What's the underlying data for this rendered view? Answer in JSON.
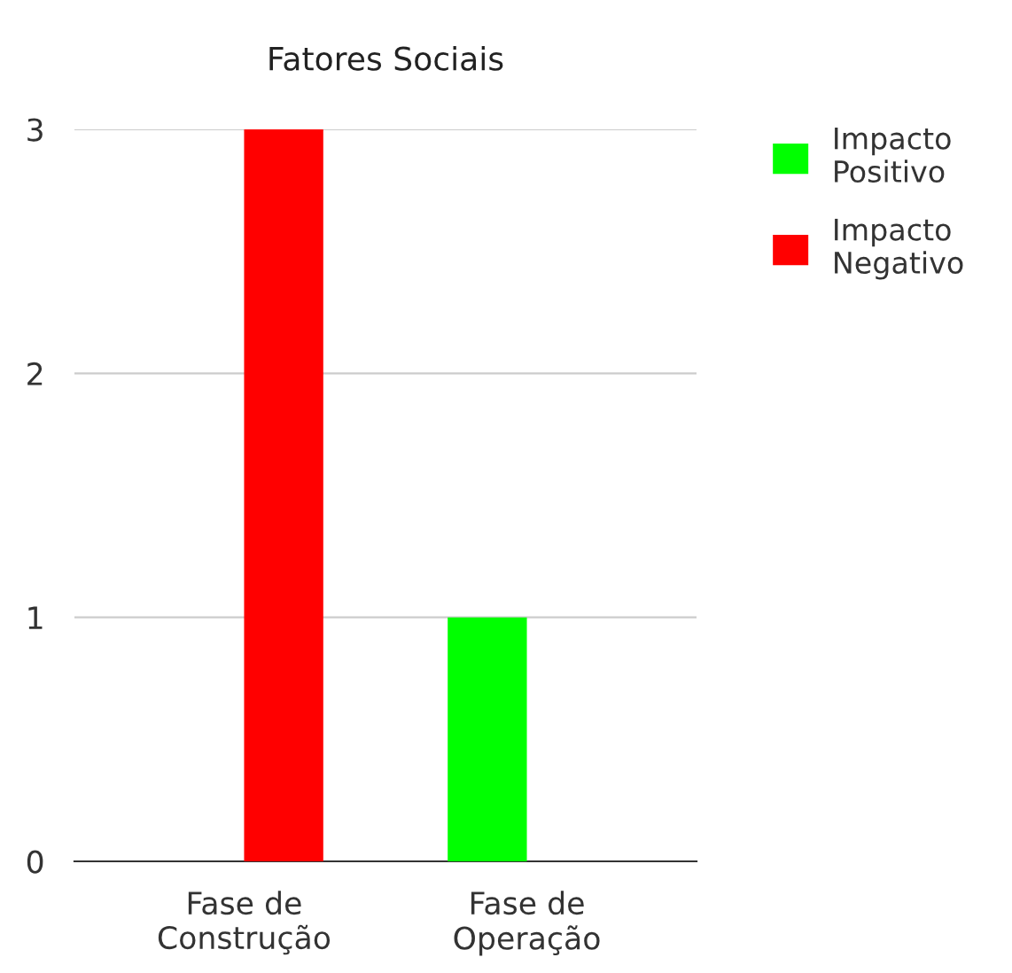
{
  "chart_data": {
    "type": "bar",
    "title": "Fatores Sociais",
    "categories": [
      "Fase de\nConstrução",
      "Fase de\nOperação"
    ],
    "series": [
      {
        "name": "Impacto\nPositivo",
        "color": "#00ff00",
        "values": [
          0,
          1
        ]
      },
      {
        "name": "Impacto\nNegativo",
        "color": "#ff0000",
        "values": [
          3,
          0
        ]
      }
    ],
    "ylim": [
      0,
      3
    ],
    "yticks": [
      0,
      1,
      2,
      3
    ],
    "grid": "y",
    "legend": "top right"
  }
}
